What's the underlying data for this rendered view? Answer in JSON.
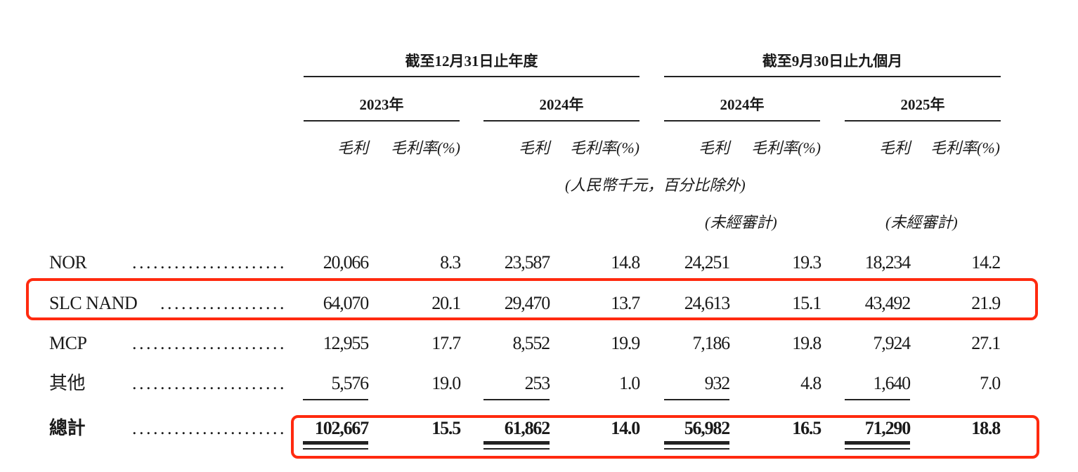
{
  "header": {
    "period_groups": [
      "截至12月31日止年度",
      "截至9月30日止九個月"
    ],
    "years": [
      "2023年",
      "2024年",
      "2024年",
      "2025年"
    ],
    "sub_headers": [
      "毛利",
      "毛利率(%)"
    ],
    "unit_note": "(人民幣千元，百分比除外)",
    "unaudited_note": "(未經審計)"
  },
  "rows": [
    {
      "label": "NOR",
      "dots": "......................",
      "values": [
        "20,066",
        "8.3",
        "23,587",
        "14.8",
        "24,251",
        "19.3",
        "18,234",
        "14.2"
      ]
    },
    {
      "label": "SLC NAND",
      "dots": "..................",
      "values": [
        "64,070",
        "20.1",
        "29,470",
        "13.7",
        "24,613",
        "15.1",
        "43,492",
        "21.9"
      ]
    },
    {
      "label": "MCP",
      "dots": "......................",
      "values": [
        "12,955",
        "17.7",
        "8,552",
        "19.9",
        "7,186",
        "19.8",
        "7,924",
        "27.1"
      ]
    },
    {
      "label": "其他",
      "dots": "......................",
      "values": [
        "5,576",
        "19.0",
        "253",
        "1.0",
        "932",
        "4.8",
        "1,640",
        "7.0"
      ]
    },
    {
      "label": "總計",
      "dots": "......................",
      "values": [
        "102,667",
        "15.5",
        "61,862",
        "14.0",
        "56,982",
        "16.5",
        "71,290",
        "18.8"
      ],
      "bold": true
    }
  ],
  "highlight_color": "#ff2a0f"
}
